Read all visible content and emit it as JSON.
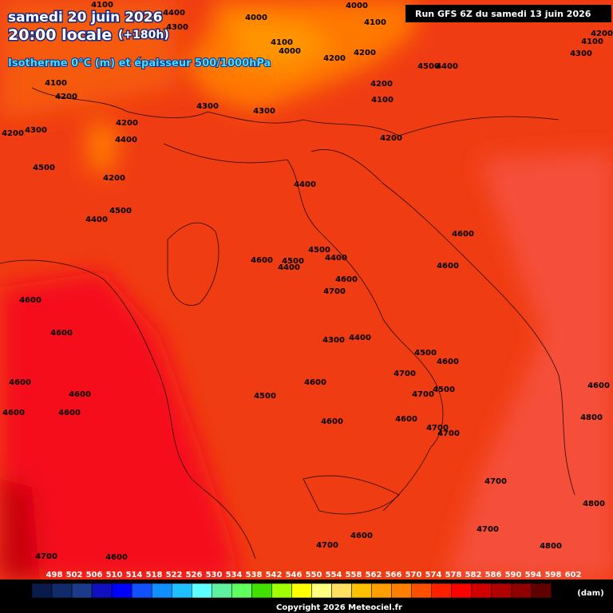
{
  "header": {
    "date": "samedi 20 juin 2026",
    "time": "20:00 locale",
    "lead": "(+180h)",
    "parameter": "Isotherme 0°C (m) et épaisseur 500/1000hPa",
    "run": "Run GFS 6Z du samedi 13 juin 2026"
  },
  "contour_labels": [
    4100,
    4000,
    4000,
    4400,
    4300,
    4100,
    4100,
    4000,
    4200,
    4200,
    4500,
    4400,
    4100,
    4200,
    4300,
    4300,
    4200,
    4100,
    4200,
    4300,
    4200,
    4400,
    4200,
    4500,
    4200,
    4400,
    4500,
    4400,
    4600,
    4500,
    4400,
    4600,
    4500,
    4400,
    4600,
    4600,
    4700,
    4600,
    4600,
    4300,
    4400,
    4500,
    4600,
    4700,
    4600,
    4600,
    4500,
    4600,
    4700,
    4500,
    4600,
    4600,
    4600,
    4600,
    4600,
    4800,
    4700,
    4700,
    4700,
    4800,
    4700,
    4600,
    4700,
    4800,
    4600,
    4700,
    4200,
    4100,
    4300,
    4000
  ],
  "legend": {
    "labels": [
      498,
      502,
      506,
      510,
      514,
      518,
      522,
      526,
      530,
      534,
      538,
      542,
      546,
      550,
      554,
      558,
      562,
      566,
      570,
      574,
      578,
      582,
      586,
      590,
      594,
      598,
      602
    ],
    "colors": [
      "#0a1a4a",
      "#102a6a",
      "#1a3a8a",
      "#1010c0",
      "#0000ff",
      "#1050ff",
      "#1090ff",
      "#20c0ff",
      "#60ffff",
      "#60f0a0",
      "#60ff60",
      "#40e000",
      "#a0ff00",
      "#ffff00",
      "#ffff80",
      "#ffe060",
      "#ffc000",
      "#ffa000",
      "#ff8000",
      "#ff5000",
      "#ff2000",
      "#ff0000",
      "#d00000",
      "#b00000",
      "#900000",
      "#600000",
      "#000000"
    ],
    "unit": "(dam)"
  },
  "footer": {
    "copyright": "Copyright 2026 Meteociel.fr"
  }
}
